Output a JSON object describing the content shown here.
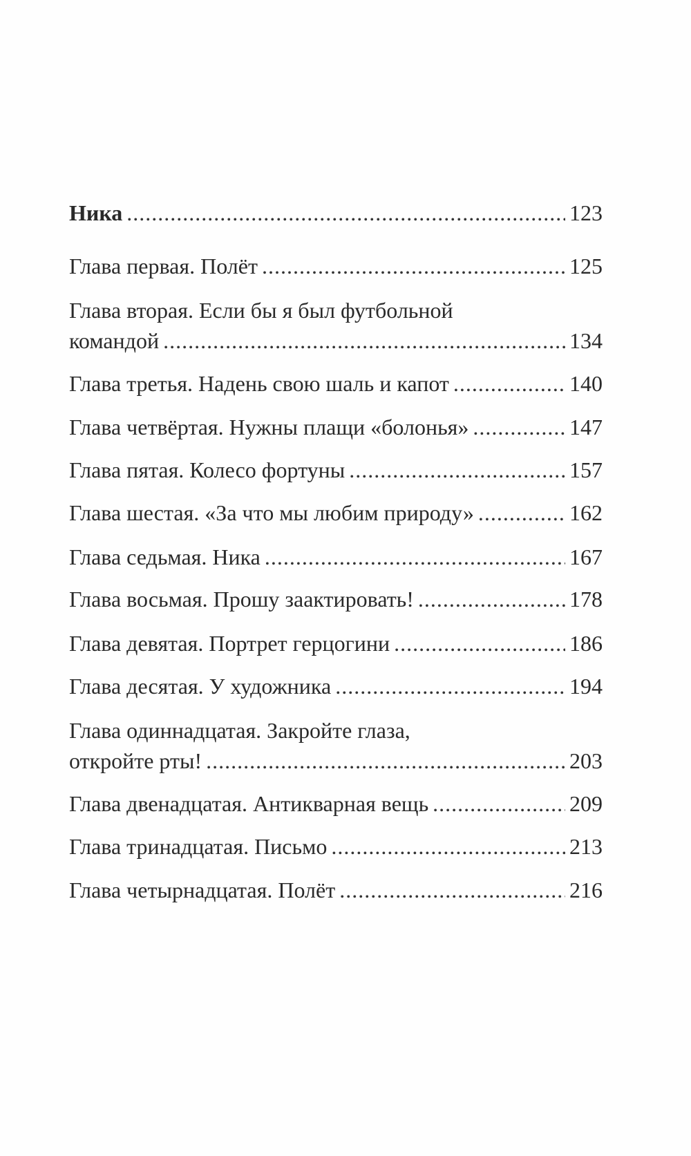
{
  "toc": {
    "part": {
      "title": "Ника",
      "page": "123"
    },
    "chapters": [
      {
        "lines": [
          "Глава первая. Полёт"
        ],
        "page": "125"
      },
      {
        "lines": [
          "Глава вторая. Если бы я был футбольной",
          "командой"
        ],
        "page": "134"
      },
      {
        "lines": [
          "Глава третья. Надень свою шаль и капот"
        ],
        "page": "140"
      },
      {
        "lines": [
          "Глава четвёртая. Нужны плащи «болонья»"
        ],
        "page": "147"
      },
      {
        "lines": [
          "Глава пятая. Колесо фортуны"
        ],
        "page": "157"
      },
      {
        "lines": [
          "Глава шестая. «За что мы любим природу»"
        ],
        "page": "162"
      },
      {
        "lines": [
          "Глава седьмая. Ника"
        ],
        "page": "167"
      },
      {
        "lines": [
          "Глава восьмая. Прошу заактировать!"
        ],
        "page": "178"
      },
      {
        "lines": [
          "Глава девятая. Портрет герцогини"
        ],
        "page": "186"
      },
      {
        "lines": [
          "Глава десятая. У художника"
        ],
        "page": "194"
      },
      {
        "lines": [
          "Глава одиннадцатая. Закройте глаза,",
          "откройте рты!"
        ],
        "page": "203"
      },
      {
        "lines": [
          "Глава двенадцатая. Антикварная вещь"
        ],
        "page": "209"
      },
      {
        "lines": [
          "Глава тринадцатая. Письмо"
        ],
        "page": "213"
      },
      {
        "lines": [
          "Глава четырнадцатая. Полёт"
        ],
        "page": "216"
      }
    ]
  }
}
